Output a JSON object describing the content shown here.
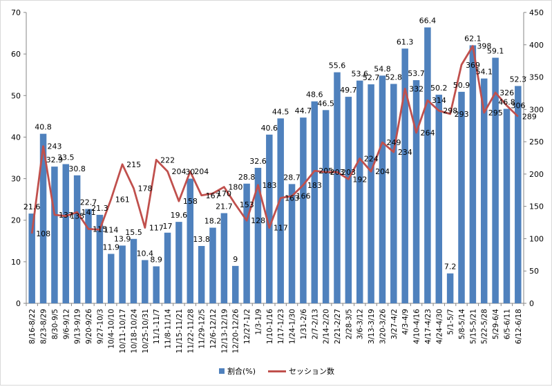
{
  "chart_data": {
    "type": "bar+line",
    "title": "",
    "categories": [
      "8/16-8/22",
      "8/23-8/29",
      "8/30-9/5",
      "9/6-9/12",
      "9/13-9/19",
      "9/20-9/26",
      "9/27-10/3",
      "10/4-10/10",
      "10/11-10/17",
      "10/18-10/24",
      "10/25-10/31",
      "11/1-11/7",
      "11/8-11/14",
      "11/15-11/21",
      "11/22-11/28",
      "11/29-12/5",
      "12/6-12/12",
      "12/13-12/19",
      "12/20-12/26",
      "12/27-1/2",
      "1/3-1/9",
      "1/10-1/16",
      "1/17-1/23",
      "1/24-1/30",
      "1/31-2/6",
      "2/7-2/13",
      "2/14-2/20",
      "2/21-2/27",
      "2/28-3/5",
      "3/6-3/12",
      "3/13-3/19",
      "3/20-3/26",
      "3/27-4/2",
      "4/3-4/9",
      "4/10-4/16",
      "4/17-4/23",
      "4/24-4/30",
      "5/1-5/7",
      "5/8-5/14",
      "5/15-5/21",
      "5/22-5/28",
      "5/29-6/4",
      "6/5-6/11",
      "6/12-6/18"
    ],
    "series": [
      {
        "name": "割合(%)",
        "type": "bar",
        "axis": "left",
        "color": "#4F81BD",
        "values": [
          21.6,
          40.8,
          32.9,
          33.5,
          30.8,
          22.7,
          21.3,
          11.9,
          13.9,
          15.5,
          10.4,
          8.9,
          17,
          19.6,
          30,
          13.8,
          18.2,
          21.7,
          9,
          28.8,
          32.6,
          40.6,
          44.5,
          28.7,
          44.7,
          48.6,
          46.5,
          55.6,
          49.7,
          53.6,
          52.7,
          54.8,
          52.8,
          61.3,
          53.7,
          66.4,
          50.2,
          7.2,
          50.9,
          62.1,
          54.1,
          59.1,
          46.8,
          52.3
        ]
      },
      {
        "name": "セッション数",
        "type": "line",
        "axis": "right",
        "color": "#C0504D",
        "values": [
          108,
          243,
          137,
          135,
          141,
          115,
          114,
          161,
          215,
          178,
          117,
          222,
          204,
          158,
          204,
          167,
          170,
          180,
          153,
          128,
          183,
          117,
          163,
          166,
          183,
          205,
          203,
          203,
          192,
          224,
          204,
          249,
          234,
          332,
          264,
          314,
          298,
          293,
          369,
          398,
          295,
          326,
          306,
          289
        ]
      }
    ],
    "y_left": {
      "range": [
        0,
        70
      ],
      "ticks": [
        "0",
        "10",
        "20",
        "30",
        "40",
        "50",
        "60",
        "70"
      ]
    },
    "y_right": {
      "range": [
        0,
        450
      ],
      "ticks": [
        "0",
        "50",
        "100",
        "150",
        "200",
        "250",
        "300",
        "350",
        "400",
        "450"
      ]
    },
    "grid": false,
    "data_labels": true,
    "legend_placement": "bottom"
  }
}
